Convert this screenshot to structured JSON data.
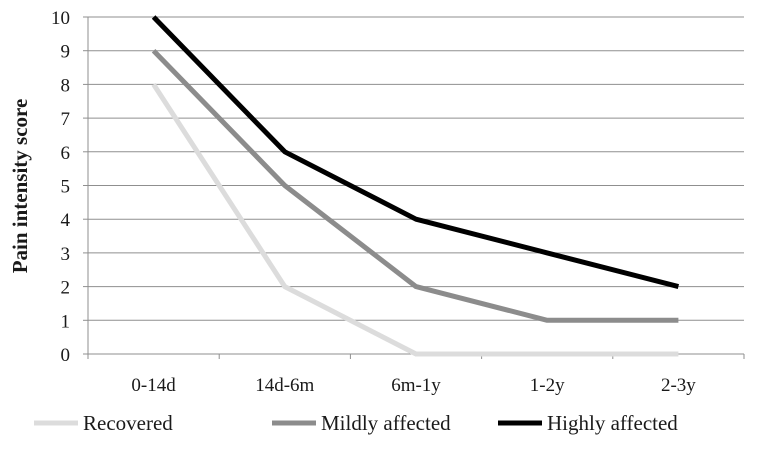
{
  "chart_data": {
    "type": "line",
    "title": "",
    "xlabel": "",
    "ylabel": "Pain intensity score",
    "ylim": [
      0,
      10
    ],
    "yticks": [
      "0",
      "1",
      "2",
      "3",
      "4",
      "5",
      "6",
      "7",
      "8",
      "9",
      "10"
    ],
    "grid": true,
    "legend_position": "bottom",
    "categories": [
      "0-14d",
      "14d-6m",
      "6m-1y",
      "1-2y",
      "2-3y"
    ],
    "series": [
      {
        "name": "Recovered",
        "color": "#dcdcdc",
        "values": [
          8,
          2,
          0,
          0,
          0
        ]
      },
      {
        "name": "Mildly affected",
        "color": "#8c8c8c",
        "values": [
          9,
          5,
          2,
          1,
          1
        ]
      },
      {
        "name": "Highly affected",
        "color": "#000000",
        "values": [
          10,
          6,
          4,
          3,
          2
        ]
      }
    ]
  }
}
